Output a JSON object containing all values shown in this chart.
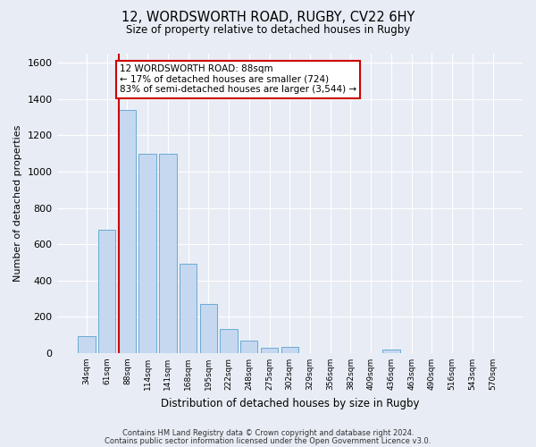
{
  "title_line1": "12, WORDSWORTH ROAD, RUGBY, CV22 6HY",
  "title_line2": "Size of property relative to detached houses in Rugby",
  "xlabel": "Distribution of detached houses by size in Rugby",
  "ylabel": "Number of detached properties",
  "categories": [
    "34sqm",
    "61sqm",
    "88sqm",
    "114sqm",
    "141sqm",
    "168sqm",
    "195sqm",
    "222sqm",
    "248sqm",
    "275sqm",
    "302sqm",
    "329sqm",
    "356sqm",
    "382sqm",
    "409sqm",
    "436sqm",
    "463sqm",
    "490sqm",
    "516sqm",
    "543sqm",
    "570sqm"
  ],
  "values": [
    95,
    680,
    1340,
    1100,
    1100,
    490,
    270,
    135,
    70,
    30,
    35,
    0,
    0,
    0,
    0,
    20,
    0,
    0,
    0,
    0,
    0
  ],
  "bar_color": "#c5d8f0",
  "bar_edge_color": "#6aaad4",
  "highlight_color": "#cc0000",
  "vline_index": 2,
  "annotation_text": "12 WORDSWORTH ROAD: 88sqm\n← 17% of detached houses are smaller (724)\n83% of semi-detached houses are larger (3,544) →",
  "annotation_box_edgecolor": "#cc0000",
  "annotation_fill": "#ffffff",
  "ylim": [
    0,
    1650
  ],
  "yticks": [
    0,
    200,
    400,
    600,
    800,
    1000,
    1200,
    1400,
    1600
  ],
  "background_color": "#e8edf5",
  "grid_color": "#ffffff",
  "footer_line1": "Contains HM Land Registry data © Crown copyright and database right 2024.",
  "footer_line2": "Contains public sector information licensed under the Open Government Licence v3.0."
}
